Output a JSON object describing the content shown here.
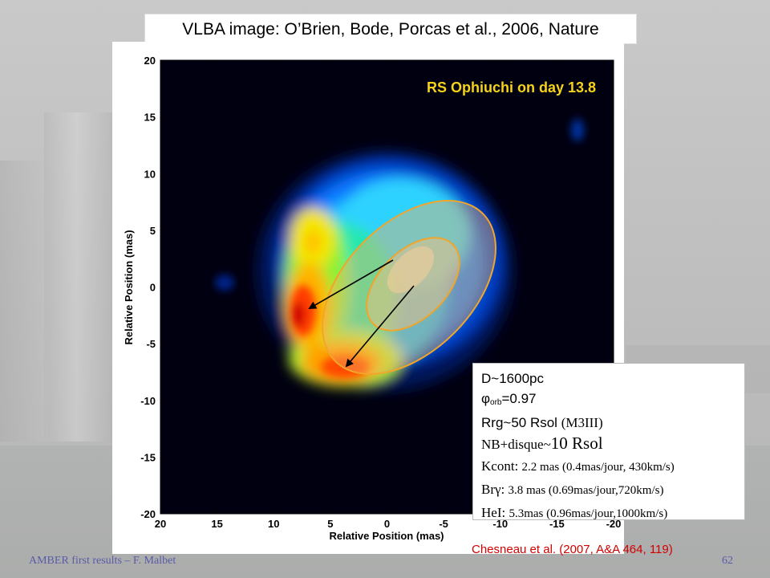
{
  "slide": {
    "title": "VLBA image: O’Brien, Bode, Porcas et al., 2006, Nature",
    "image_label": "RS Ophiuchi on day 13.8",
    "footer_left": "AMBER first results – F. Malbet",
    "page_number": "62",
    "citation": "Chesneau et al. (2007, A&A 464, 119)"
  },
  "plot": {
    "ylabel": "Relative Position (mas)",
    "xlabel": "Relative Position (mas)",
    "x_ticks": [
      "20",
      "15",
      "10",
      "5",
      "0",
      "-5",
      "-10",
      "-15",
      "-20"
    ],
    "y_ticks": [
      "20",
      "15",
      "10",
      "5",
      "0",
      "-5",
      "-10",
      "-15",
      "-20"
    ],
    "xlim": [
      20,
      -20
    ],
    "ylim": [
      -20,
      20
    ],
    "overlay_color": "#f2a52a"
  },
  "info": {
    "dist": "D~1600pc",
    "phi_sym": "φ",
    "phi_sub": "orb",
    "phi_val": "=0.97",
    "rrg_sans": "Rrg~50 Rsol",
    "rrg_serif": "(M3III)",
    "nb_serif": "NB+disque~",
    "nb_big": "10 Rsol",
    "kcont_label": "Kcont:",
    "kcont_val": "2.2 mas (0.4mas/jour, 430km/s)",
    "brg_label": "Brγ:",
    "brg_val": "3.8 mas (0.69mas/jour,720km/s)",
    "hei_label": "HeI:",
    "hei_val": "5.3mas (0.96mas/jour,1000km/s)"
  }
}
